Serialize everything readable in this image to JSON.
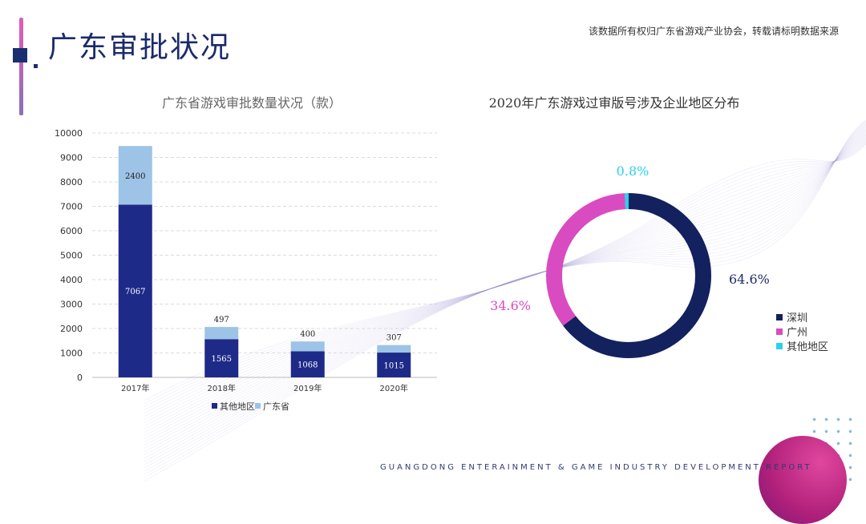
{
  "header": {
    "title": "广东审批状况",
    "copyright": "该数据所有权归广东省游戏产业协会，转载请标明数据来源"
  },
  "footer": {
    "text": "GUANGDONG ENTERAINMENT & GAME INDUSTRY DEVELOPMENT REPORT"
  },
  "colors": {
    "navy": "#1e2a88",
    "lightblue": "#9dc3e6",
    "magenta": "#d94bc0",
    "cyan": "#2bd0ee",
    "darknavy": "#13215e"
  },
  "chart_data": [
    {
      "type": "bar",
      "stacked": true,
      "title": "广东省游戏审批数量状况（款）",
      "categories": [
        "2017年",
        "2018年",
        "2019年",
        "2020年"
      ],
      "series": [
        {
          "name": "其他地区",
          "values": [
            7067,
            1565,
            1068,
            1015
          ],
          "color": "#1e2a88"
        },
        {
          "name": "广东省",
          "values": [
            2400,
            497,
            400,
            307
          ],
          "color": "#9dc3e6"
        }
      ],
      "yticks": [
        "0",
        "1000",
        "2000",
        "3000",
        "4000",
        "5000",
        "6000",
        "7000",
        "8000",
        "9000",
        "10000"
      ],
      "ylim": [
        0,
        10000
      ],
      "grid": true,
      "legend": "bottom"
    },
    {
      "type": "pie",
      "donut": true,
      "title": "2020年广东游戏过审版号涉及企业地区分布",
      "slices": [
        {
          "name": "深圳",
          "value": 64.6,
          "label": "64.6%",
          "color": "#13215e"
        },
        {
          "name": "广州",
          "value": 34.6,
          "label": "34.6%",
          "color": "#d94bc0"
        },
        {
          "name": "其他地区",
          "value": 0.8,
          "label": "0.8%",
          "color": "#2bd0ee"
        }
      ],
      "legend": "right"
    }
  ]
}
